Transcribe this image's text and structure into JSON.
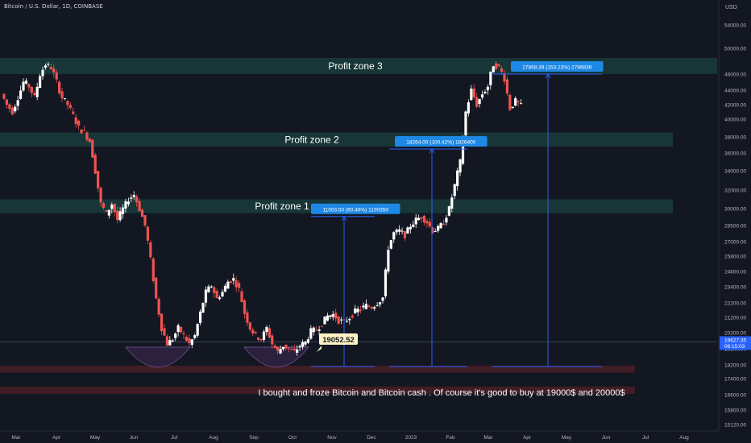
{
  "header": {
    "symbol_title": "Bitcoin / U.S. Dollar, 1D, COINBASE"
  },
  "colors": {
    "background": "#131722",
    "up": "#ffffff",
    "down": "#ef5350",
    "zone_fill": "#1a3a3a",
    "support_fill": "#4a1e26",
    "cup_fill": "#2e2340",
    "measure": "#2962ff",
    "label_bg": "#1e88e5",
    "price_label_bg": "#fff3c4"
  },
  "chart_data": {
    "type": "candlestick",
    "currency_label": "USD",
    "y_ticks": [
      "54000.00",
      "50000.00",
      "46000.00",
      "44000.00",
      "42000.00",
      "40000.00",
      "38000.00",
      "36000.00",
      "34000.00",
      "32000.00",
      "30000.00",
      "28500.00",
      "27000.00",
      "25800.00",
      "24600.00",
      "23400.00",
      "22200.00",
      "21200.00",
      "20200.00",
      "19200.00",
      "18200.00",
      "17400.00",
      "16600.00",
      "15800.00",
      "15120.00"
    ],
    "x_ticks": [
      "Mar",
      "Apr",
      "May",
      "Jun",
      "Jul",
      "Aug",
      "Sep",
      "Oct",
      "Nov",
      "Dec",
      "2023",
      "Feb",
      "Mar",
      "Apr",
      "May",
      "Jun",
      "Jul",
      "Aug"
    ],
    "current_price": {
      "value": "19627.35",
      "countdown": "06:15:03"
    },
    "zones": [
      {
        "label": "Profit zone 3",
        "low": 46000,
        "high": 48500
      },
      {
        "label": "Profit zone 2",
        "low": 36800,
        "high": 38500
      },
      {
        "label": "Profit zone 1",
        "low": 29600,
        "high": 31000
      }
    ],
    "support_bands": [
      {
        "low": 17750,
        "high": 18150
      },
      {
        "low": 16650,
        "high": 17000
      }
    ],
    "measurements": [
      {
        "label": "11003.50 (60.40%) 1100350",
        "from": 18100,
        "to": 29300
      },
      {
        "label": "18264.00 (100.42%) 1826400",
        "from": 18100,
        "to": 36500
      },
      {
        "label": "27868.39 (153.23%) 2786839",
        "from": 18100,
        "to": 46000
      }
    ],
    "annotations": {
      "price_label": "19052.52",
      "note": "I bought and froze Bitcoin and Bitcoin cash . Of course it's good to buy at 19000$ and 20000$"
    },
    "price_path": [
      [
        0,
        43500
      ],
      [
        1,
        42000
      ],
      [
        2,
        41000
      ],
      [
        3,
        43000
      ],
      [
        4,
        45000
      ],
      [
        5,
        44500
      ],
      [
        6,
        43000
      ],
      [
        7,
        46000
      ],
      [
        8,
        47500
      ],
      [
        9,
        47000
      ],
      [
        10,
        45000
      ],
      [
        11,
        43000
      ],
      [
        12,
        42000
      ],
      [
        13,
        40500
      ],
      [
        14,
        39000
      ],
      [
        15,
        38500
      ],
      [
        16,
        37500
      ],
      [
        17,
        34000
      ],
      [
        18,
        30500
      ],
      [
        19,
        29500
      ],
      [
        20,
        30500
      ],
      [
        21,
        29000
      ],
      [
        22,
        30000
      ],
      [
        23,
        31000
      ],
      [
        24,
        31500
      ],
      [
        25,
        30000
      ],
      [
        26,
        28500
      ],
      [
        27,
        25500
      ],
      [
        28,
        22500
      ],
      [
        29,
        20500
      ],
      [
        30,
        19500
      ],
      [
        31,
        19800
      ],
      [
        32,
        20500
      ],
      [
        33,
        20000
      ],
      [
        34,
        19500
      ],
      [
        35,
        20000
      ],
      [
        36,
        21500
      ],
      [
        37,
        23000
      ],
      [
        38,
        23500
      ],
      [
        39,
        22500
      ],
      [
        40,
        23000
      ],
      [
        41,
        23800
      ],
      [
        42,
        24000
      ],
      [
        43,
        23200
      ],
      [
        44,
        21500
      ],
      [
        45,
        20500
      ],
      [
        46,
        20000
      ],
      [
        47,
        19800
      ],
      [
        48,
        20500
      ],
      [
        49,
        19500
      ],
      [
        50,
        19000
      ],
      [
        51,
        19400
      ],
      [
        52,
        19200
      ],
      [
        53,
        19000
      ],
      [
        54,
        19400
      ],
      [
        55,
        19600
      ],
      [
        56,
        20300
      ],
      [
        57,
        20400
      ],
      [
        58,
        20800
      ],
      [
        59,
        21300
      ],
      [
        60,
        21400
      ],
      [
        61,
        21000
      ],
      [
        62,
        20900
      ],
      [
        63,
        21200
      ],
      [
        64,
        21600
      ],
      [
        65,
        21800
      ],
      [
        66,
        22000
      ],
      [
        67,
        21900
      ],
      [
        68,
        22200
      ],
      [
        69,
        22600
      ],
      [
        70,
        26500
      ],
      [
        71,
        27800
      ],
      [
        72,
        28000
      ],
      [
        73,
        27600
      ],
      [
        74,
        28500
      ],
      [
        75,
        29000
      ],
      [
        76,
        29300
      ],
      [
        77,
        28800
      ],
      [
        78,
        28000
      ],
      [
        79,
        28200
      ],
      [
        80,
        28800
      ],
      [
        81,
        30000
      ],
      [
        82,
        32500
      ],
      [
        83,
        35000
      ],
      [
        84,
        41000
      ],
      [
        85,
        44000
      ],
      [
        86,
        42000
      ],
      [
        87,
        43500
      ],
      [
        88,
        44500
      ],
      [
        89,
        47500
      ],
      [
        90,
        47000
      ],
      [
        91,
        45500
      ],
      [
        92,
        41500
      ],
      [
        93,
        42500
      ],
      [
        94,
        41800
      ]
    ]
  }
}
